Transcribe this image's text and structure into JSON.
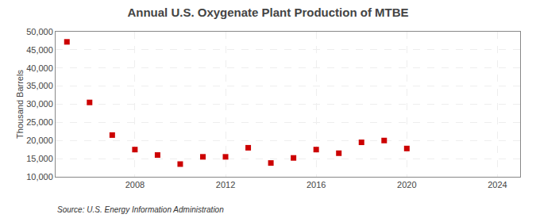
{
  "chart_data": {
    "type": "scatter",
    "title": "Annual U.S. Oxygenate Plant Production of MTBE",
    "y_label": "Thousand Barrels",
    "annotations": [
      "Source: U.S. Energy Information Administration"
    ],
    "x": [
      2005,
      2006,
      2007,
      2008,
      2009,
      2010,
      2011,
      2012,
      2013,
      2014,
      2015,
      2016,
      2017,
      2018,
      2019,
      2020
    ],
    "values": [
      47200,
      30500,
      21500,
      17500,
      16000,
      13500,
      15500,
      15500,
      18000,
      13800,
      15200,
      17500,
      16500,
      19500,
      20000,
      17800
    ],
    "color": "#cc0000",
    "marker": "square",
    "xlim": [
      2004.5,
      2025
    ],
    "xticks": [
      2008,
      2012,
      2016,
      2020,
      2024
    ],
    "ylim": [
      10000,
      50000
    ],
    "yticks": [
      {
        "value": 10000,
        "label": "10,000"
      },
      {
        "value": 15000,
        "label": "15,000"
      },
      {
        "value": 20000,
        "label": "20,000"
      },
      {
        "value": 25000,
        "label": "25,000"
      },
      {
        "value": 30000,
        "label": "30,000"
      },
      {
        "value": 35000,
        "label": "35,000"
      },
      {
        "value": 40000,
        "label": "40,000"
      },
      {
        "value": 45000,
        "label": "45,000"
      },
      {
        "value": 50000,
        "label": "50,000"
      }
    ],
    "grid": true
  }
}
